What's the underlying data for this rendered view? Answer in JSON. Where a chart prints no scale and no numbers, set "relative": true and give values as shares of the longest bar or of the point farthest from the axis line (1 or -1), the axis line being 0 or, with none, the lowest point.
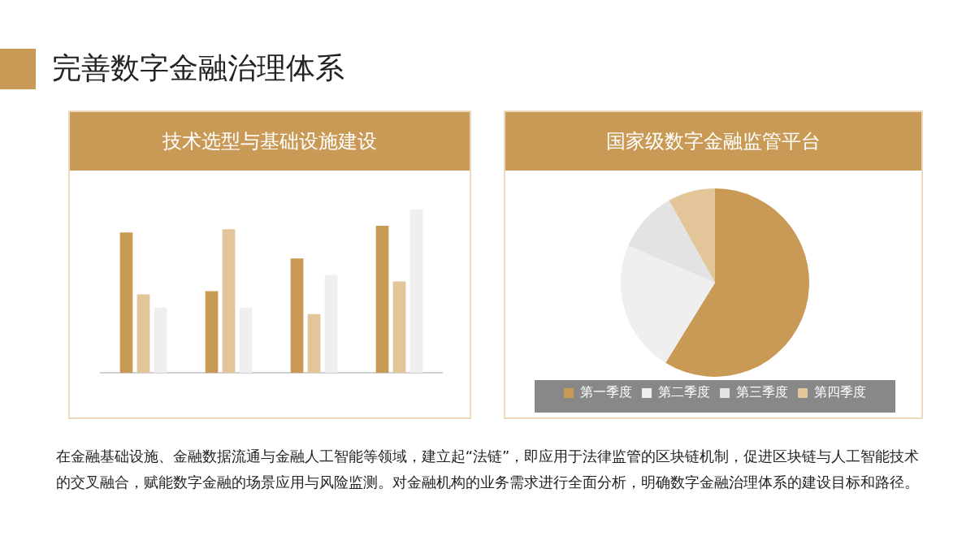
{
  "chart_data": [
    {
      "type": "bar",
      "title": "技术选型与基础设施建设",
      "categories": [
        null,
        null,
        null,
        null
      ],
      "relative": true,
      "legend": false,
      "grid": false,
      "series": [
        {
          "color": "#c99a55",
          "values": [
            0.86,
            0.5,
            0.7,
            0.9
          ]
        },
        {
          "color": "#e2c69a",
          "values": [
            0.48,
            0.88,
            0.36,
            0.56
          ]
        },
        {
          "color": "#efefef",
          "values": [
            0.4,
            0.4,
            0.6,
            1
          ]
        }
      ],
      "annotations": [
        "完善数字金融治理体系",
        "在金融基础设施、金融数据流通与金融人工智能等领域，建立起“法链”，即应用于法律监管的区块链机制，促进区块链与人工智能技术的交叉融合，赋能数字金融的场景应用与风险监测。对金融机构的业务需求进行全面分析，明确数字金融治理体系的建设目标和路径。"
      ]
    },
    {
      "type": "pie",
      "title": "国家级数字金融监管平台",
      "categories": [
        "第一季度",
        "第二季度",
        "第三季度",
        "第四季度"
      ],
      "values": [
        58.8,
        22.6,
        10.5,
        8.1
      ],
      "colors": [
        "#c99a55",
        "#efefef",
        "#e3e3e3",
        "#e2c69a"
      ],
      "legend": "bottom"
    }
  ]
}
